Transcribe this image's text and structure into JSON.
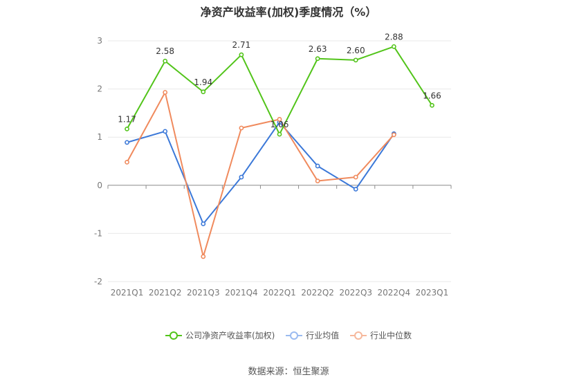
{
  "title": "净资产收益率(加权)季度情况（%）",
  "source": "数据来源：恒生聚源",
  "chart_data": {
    "type": "line",
    "title": "净资产收益率(加权)季度情况（%）",
    "categories": [
      "2021Q1",
      "2021Q2",
      "2021Q3",
      "2021Q4",
      "2022Q1",
      "2022Q2",
      "2022Q3",
      "2022Q4",
      "2023Q1"
    ],
    "ylim": [
      -2,
      3
    ],
    "yticks": [
      -2,
      -1,
      0,
      1,
      2,
      3
    ],
    "grid": true,
    "legend_position": "bottom",
    "series": [
      {
        "name": "公司净资产收益率(加权)",
        "color": "#52c41a",
        "values": [
          1.17,
          2.58,
          1.94,
          2.71,
          1.06,
          2.63,
          2.6,
          2.88,
          1.66
        ],
        "labels": [
          "1.17",
          "2.58",
          "1.94",
          "2.71",
          "1.06",
          "2.63",
          "2.60",
          "2.88",
          "1.66"
        ]
      },
      {
        "name": "行业均值",
        "color": "#3b78d8",
        "values": [
          0.89,
          1.12,
          -0.8,
          0.17,
          1.31,
          0.4,
          -0.08,
          1.07,
          null
        ]
      },
      {
        "name": "行业中位数",
        "color": "#f08a5d",
        "values": [
          0.48,
          1.93,
          -1.48,
          1.19,
          1.37,
          0.09,
          0.17,
          1.05,
          null
        ]
      }
    ]
  }
}
